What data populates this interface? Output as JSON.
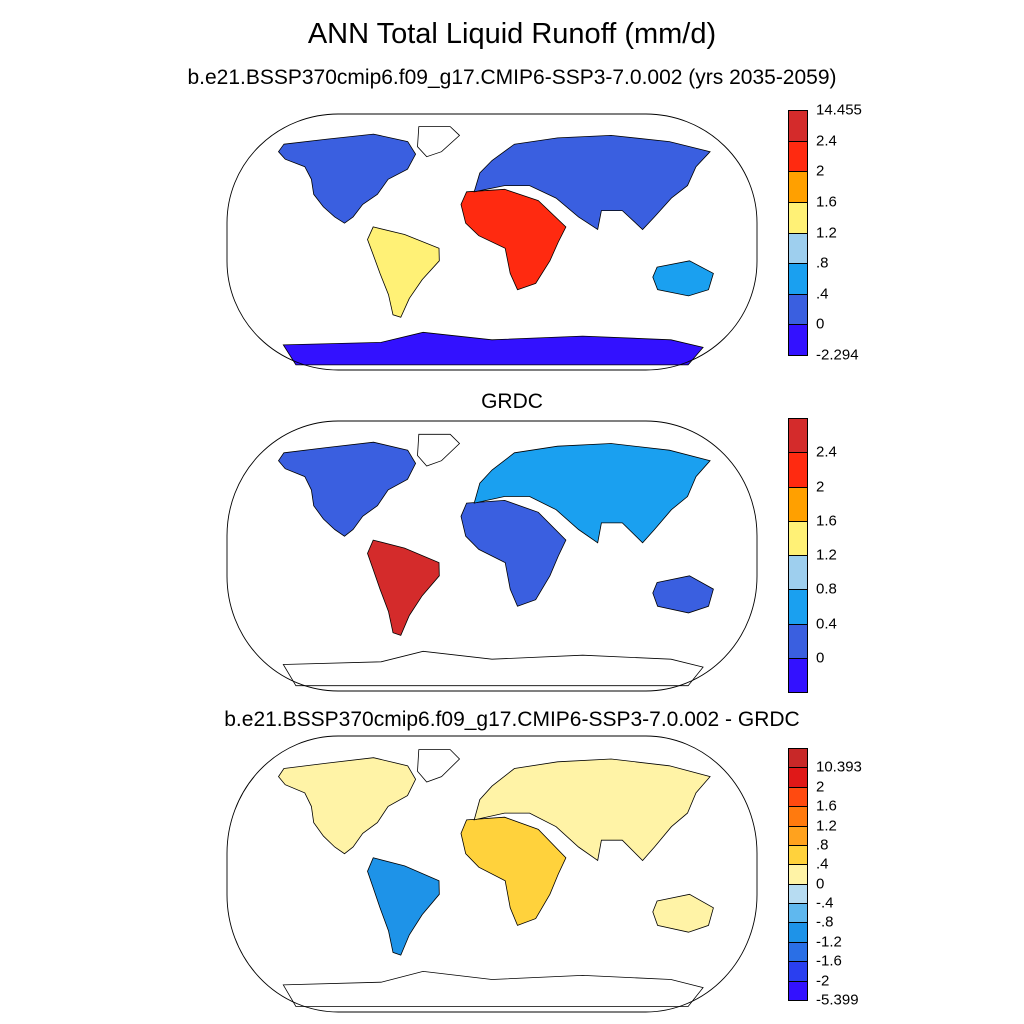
{
  "title": "ANN Total Liquid Runoff (mm/d)",
  "panels": [
    {
      "name": "model",
      "title": "b.e21.BSSP370cmip6.f09_g17.CMIP6-SSP3-7.0.002 (yrs 2035-2059)",
      "colorbar": {
        "colors": [
          "#3311ff",
          "#3a5fe0",
          "#1aa0f0",
          "#9ecfee",
          "#fff176",
          "#ffa000",
          "#ff2a10",
          "#d42b2b"
        ],
        "labels": [
          "-2.294",
          "0",
          ".4",
          ".8",
          "1.2",
          "1.6",
          "2",
          "2.4",
          "14.455"
        ]
      }
    },
    {
      "name": "obs",
      "title": "GRDC",
      "colorbar": {
        "colors": [
          "#3311ff",
          "#3a5fe0",
          "#1aa0f0",
          "#9ecfee",
          "#fff176",
          "#ffa000",
          "#ff2a10",
          "#d42b2b"
        ],
        "labels": [
          "0",
          "0.4",
          "0.8",
          "1.2",
          "1.6",
          "2",
          "2.4"
        ]
      }
    },
    {
      "name": "diff",
      "title": "b.e21.BSSP370cmip6.f09_g17.CMIP6-SSP3-7.0.002 - GRDC",
      "colorbar": {
        "colors": [
          "#3311ff",
          "#2a3ff0",
          "#2a6fe6",
          "#1e93e8",
          "#5fb8ef",
          "#b7dcf2",
          "#fff3a6",
          "#ffd23c",
          "#ffa21e",
          "#ff7a0e",
          "#ff4a10",
          "#e01818",
          "#c82828"
        ],
        "labels": [
          "-5.399",
          "-2",
          "-1.6",
          "-1.2",
          "-.8",
          "-.4",
          "0",
          ".4",
          ".8",
          "1.2",
          "1.6",
          "2",
          "10.393"
        ]
      }
    }
  ]
}
